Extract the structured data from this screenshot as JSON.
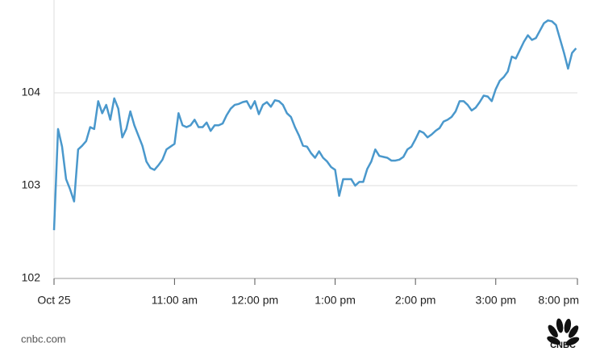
{
  "chart_data": {
    "type": "line",
    "x": [
      0,
      3,
      6,
      9,
      12,
      15,
      18,
      21,
      24,
      27,
      30,
      33,
      36,
      39,
      42,
      45,
      48,
      51,
      54,
      57,
      60,
      63,
      66,
      69,
      72,
      75,
      78,
      81,
      84,
      87,
      90,
      93,
      96,
      99,
      102,
      105,
      108,
      111,
      114,
      117,
      120,
      123,
      126,
      129,
      132,
      135,
      138,
      141,
      144,
      147,
      150,
      153,
      156,
      159,
      162,
      165,
      168,
      171,
      174,
      177,
      180,
      183,
      186,
      189,
      192,
      195,
      198,
      201,
      204,
      207,
      210,
      213,
      216,
      219,
      222,
      225,
      228,
      231,
      234,
      237,
      240,
      243,
      246,
      249,
      252,
      255,
      258,
      261,
      264,
      267,
      270,
      273,
      276,
      279,
      282,
      285,
      288,
      291,
      294,
      297,
      300,
      303,
      306,
      309,
      312,
      315,
      318,
      321,
      324,
      327,
      330,
      333,
      336,
      339,
      342,
      345,
      348,
      351,
      354,
      357,
      360,
      363,
      366,
      369,
      372,
      375,
      378,
      381,
      384,
      387,
      390
    ],
    "series": [
      {
        "name": "Price",
        "color": "#4a98cc",
        "values": [
          102.52,
          103.61,
          103.42,
          103.07,
          102.96,
          102.83,
          103.39,
          103.43,
          103.48,
          103.63,
          103.61,
          103.91,
          103.78,
          103.87,
          103.71,
          103.94,
          103.83,
          103.52,
          103.61,
          103.8,
          103.65,
          103.54,
          103.43,
          103.26,
          103.19,
          103.17,
          103.22,
          103.28,
          103.39,
          103.42,
          103.45,
          103.78,
          103.65,
          103.63,
          103.65,
          103.71,
          103.63,
          103.63,
          103.68,
          103.59,
          103.65,
          103.65,
          103.67,
          103.76,
          103.83,
          103.87,
          103.88,
          103.9,
          103.91,
          103.83,
          103.91,
          103.77,
          103.87,
          103.9,
          103.85,
          103.92,
          103.91,
          103.87,
          103.78,
          103.74,
          103.63,
          103.54,
          103.43,
          103.42,
          103.35,
          103.3,
          103.37,
          103.3,
          103.26,
          103.2,
          103.17,
          102.89,
          103.07,
          103.07,
          103.07,
          103.0,
          103.04,
          103.04,
          103.18,
          103.26,
          103.39,
          103.32,
          103.31,
          103.3,
          103.27,
          103.27,
          103.28,
          103.31,
          103.39,
          103.42,
          103.5,
          103.59,
          103.57,
          103.52,
          103.55,
          103.59,
          103.62,
          103.69,
          103.71,
          103.74,
          103.8,
          103.91,
          103.91,
          103.87,
          103.81,
          103.84,
          103.9,
          103.97,
          103.96,
          103.91,
          104.04,
          104.13,
          104.17,
          104.23,
          104.39,
          104.37,
          104.46,
          104.55,
          104.62,
          104.57,
          104.59,
          104.67,
          104.75,
          104.78,
          104.77,
          104.73,
          104.58,
          104.43,
          104.26,
          104.43,
          104.48
        ]
      }
    ],
    "xlim": [
      0,
      391
    ],
    "xticks": [
      {
        "value": 0,
        "label": "Oct 25"
      },
      {
        "value": 90,
        "label": "11:00 am"
      },
      {
        "value": 150,
        "label": "12:00 pm"
      },
      {
        "value": 210,
        "label": "1:00 pm"
      },
      {
        "value": 270,
        "label": "2:00 pm"
      },
      {
        "value": 330,
        "label": "3:00 pm"
      },
      {
        "value": 391,
        "label": "8:00 pm"
      }
    ],
    "ylim": [
      102,
      105
    ],
    "yticks": [
      102,
      103,
      104
    ],
    "grid": true,
    "source": "cnbc.com",
    "logo": "CNBC"
  }
}
